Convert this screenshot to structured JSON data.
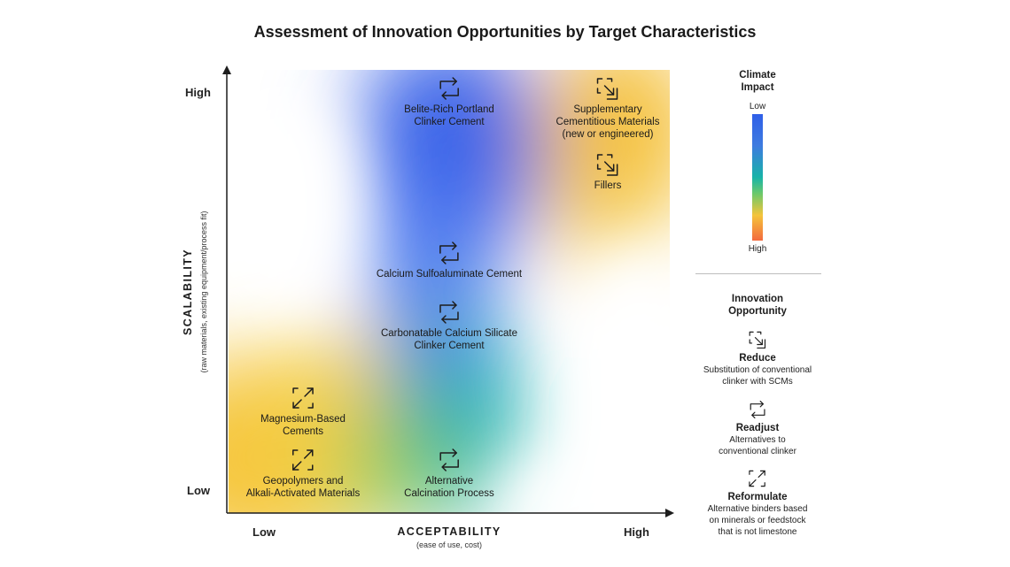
{
  "title": "Assessment of Innovation Opportunities by Target Characteristics",
  "axes": {
    "x_title": "ACCEPTABILITY",
    "x_subtitle": "(ease of use, cost)",
    "x_low": "Low",
    "x_high": "High",
    "y_title": "SCALABILITY",
    "y_subtitle": "(raw materials, existing equipment/process fit)",
    "y_low": "Low",
    "y_high": "High"
  },
  "items": [
    {
      "line1": "Belite-Rich Portland",
      "line2": "Clinker Cement",
      "line3": "",
      "icon": "readjust-icon"
    },
    {
      "line1": "Supplementary",
      "line2": "Cementitious Materials",
      "line3": "(new or engineered)",
      "icon": "reduce-icon"
    },
    {
      "line1": "Fillers",
      "line2": "",
      "line3": "",
      "icon": "reduce-icon"
    },
    {
      "line1": "Calcium Sulfoaluminate Cement",
      "line2": "",
      "line3": "",
      "icon": "readjust-icon"
    },
    {
      "line1": "Carbonatable Calcium Silicate",
      "line2": "Clinker Cement",
      "line3": "",
      "icon": "readjust-icon"
    },
    {
      "line1": "Magnesium-Based",
      "line2": "Cements",
      "line3": "",
      "icon": "reformulate-icon"
    },
    {
      "line1": "Geopolymers and",
      "line2": "Alkali-Activated Materials",
      "line3": "",
      "icon": "reformulate-icon"
    },
    {
      "line1": "Alternative",
      "line2": "Calcination Process",
      "line3": "",
      "icon": "readjust-icon"
    }
  ],
  "legend": {
    "climate_title_1": "Climate",
    "climate_title_2": "Impact",
    "climate_low": "Low",
    "climate_high": "High",
    "innovation_title_1": "Innovation",
    "innovation_title_2": "Opportunity",
    "entries": [
      {
        "name": "Reduce",
        "desc1": "Substitution of conventional",
        "desc2": "clinker with SCMs",
        "desc3": "",
        "icon": "reduce-icon"
      },
      {
        "name": "Readjust",
        "desc1": "Alternatives to",
        "desc2": "conventional clinker",
        "desc3": "",
        "icon": "readjust-icon"
      },
      {
        "name": "Reformulate",
        "desc1": "Alternative binders based",
        "desc2": "on minerals or feedstock",
        "desc3": "that is not limestone",
        "icon": "reformulate-icon"
      }
    ]
  },
  "colors": {
    "low_impact": "#2f5fe8",
    "mid_impact": "#17b3a8",
    "high_impact": "#f36a3e",
    "yellow": "#f4c43b",
    "axis": "#1d1d1d"
  }
}
